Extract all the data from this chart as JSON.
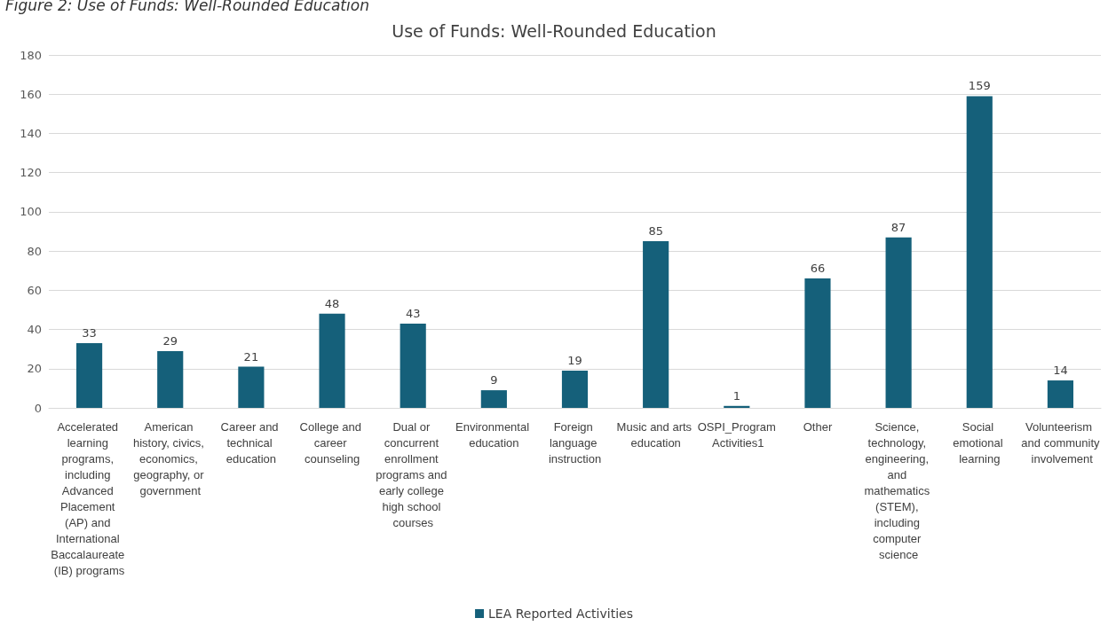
{
  "chart_data": {
    "type": "bar",
    "title": "Use of Funds: Well-Rounded Education",
    "annotations": [
      "Figure 2: Use of Funds: Well-Rounded Education"
    ],
    "categories": [
      "Accelerated learning programs, including Advanced Placement (AP) and International Baccalaureate (IB) programs",
      "American history, civics, economics, geography, or government",
      "Career and technical education",
      "College and career counseling",
      "Dual or concurrent enrollment programs and early college high school courses",
      "Environmental education",
      "Foreign language instruction",
      "Music and arts education",
      "OSPI_Program Activities1",
      "Other",
      "Science, technology, engineering, and mathematics (STEM), including computer science",
      "Social emotional learning",
      "Volunteerism and community involvement"
    ],
    "series": [
      {
        "name": "LEA Reported Activities",
        "color": "#15607a",
        "values": [
          33,
          29,
          21,
          48,
          43,
          9,
          19,
          85,
          1,
          66,
          87,
          159,
          14
        ]
      }
    ],
    "ylim": [
      0,
      180
    ],
    "yticks": [
      0,
      20,
      40,
      60,
      80,
      100,
      120,
      140,
      160,
      180
    ],
    "grid": "y",
    "legend": "bottom",
    "data_labels": true
  }
}
